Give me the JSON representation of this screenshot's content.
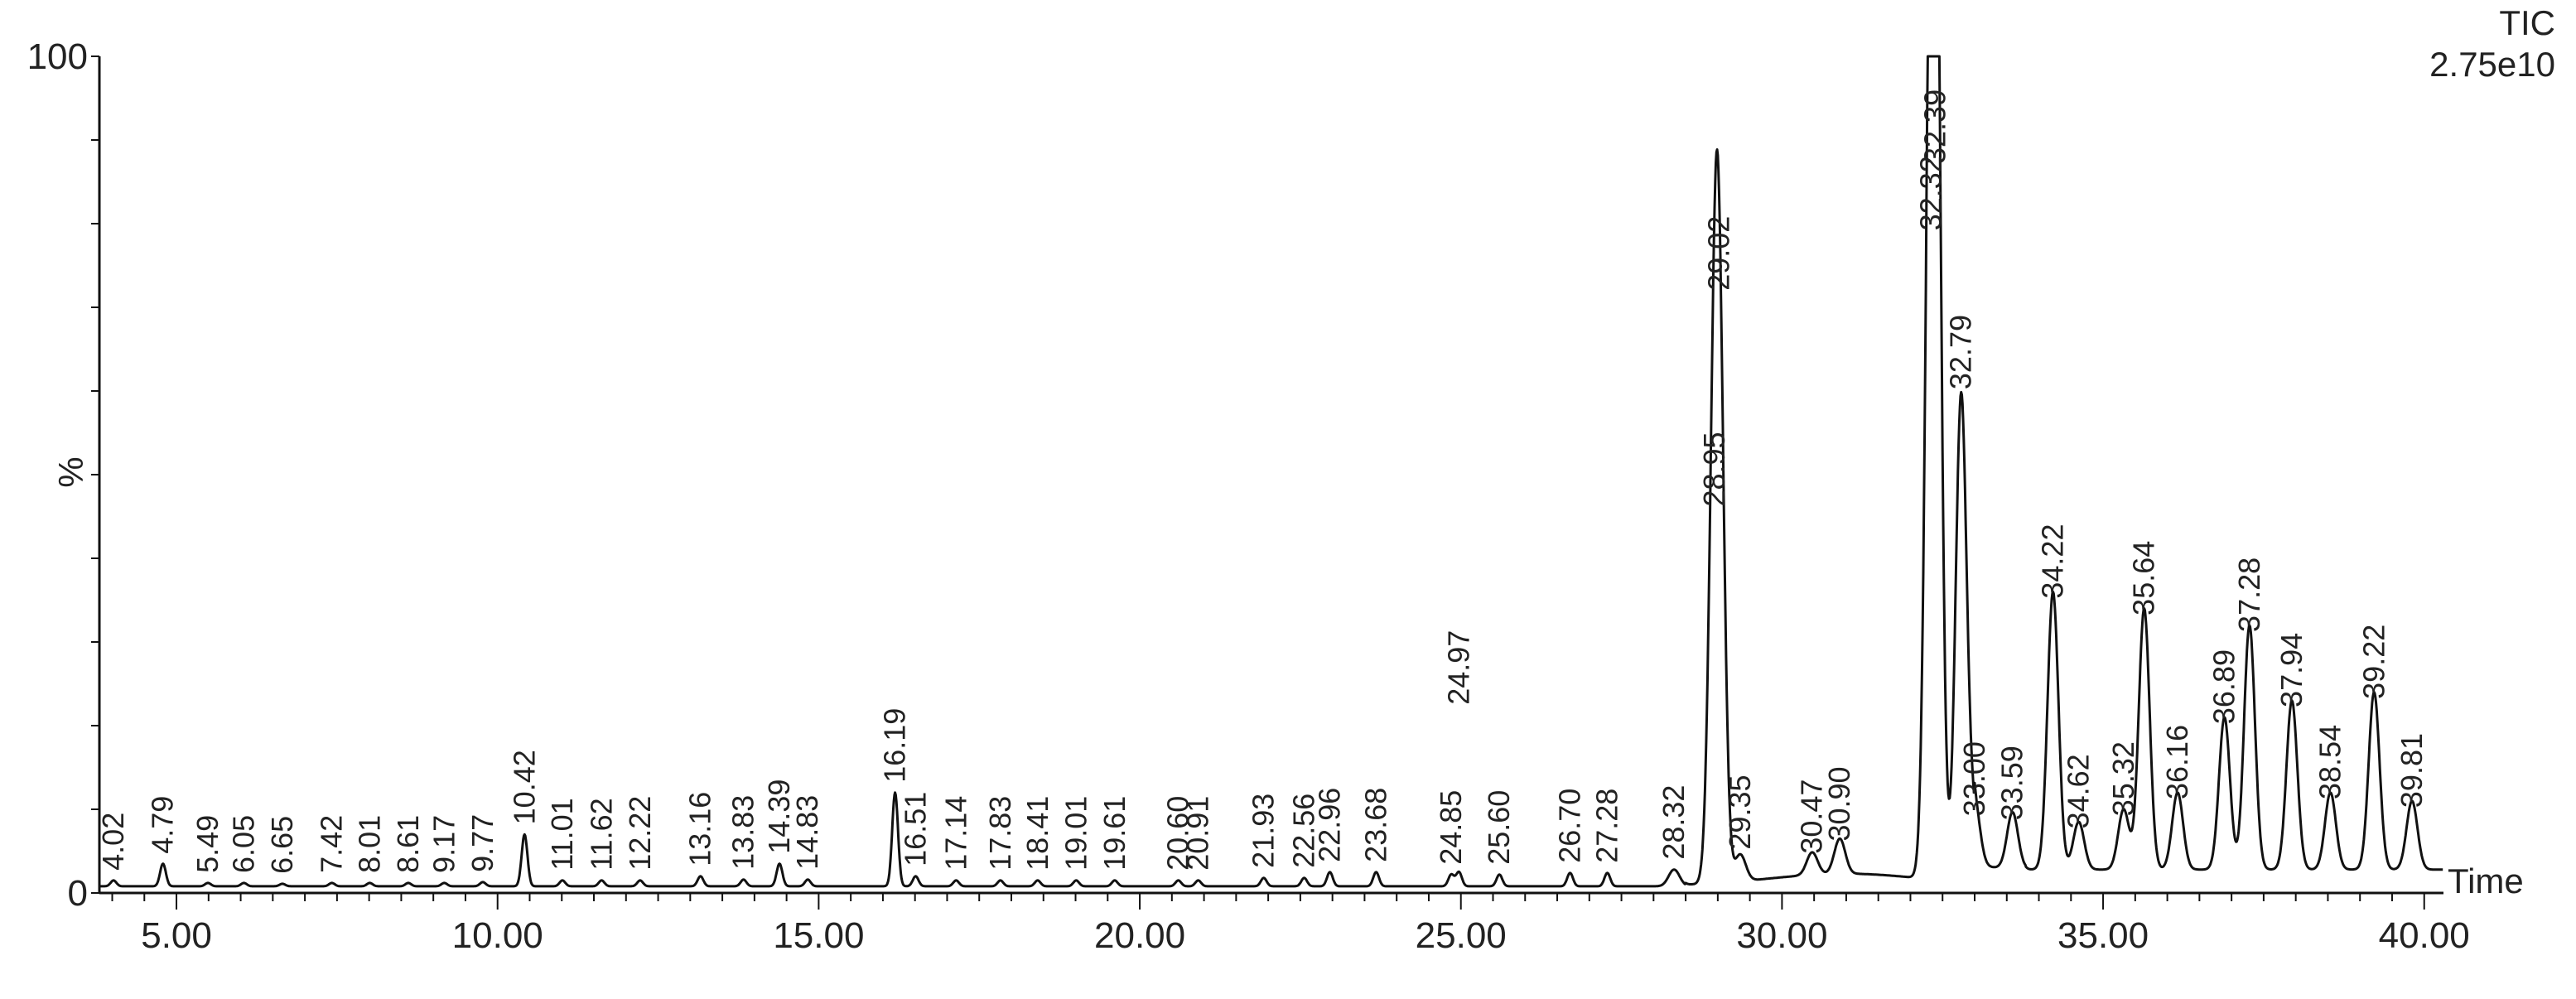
{
  "chart_data": {
    "type": "line",
    "title": "",
    "trace_name": "TIC",
    "scale_label": "2.75e10",
    "xlabel": "Time",
    "ylabel": "%",
    "xlim": [
      3.8,
      40.3
    ],
    "ylim": [
      0,
      100
    ],
    "x_ticks": [
      "5.00",
      "10.00",
      "15.00",
      "20.00",
      "25.00",
      "30.00",
      "35.00",
      "40.00"
    ],
    "y_ticks": [
      "0",
      "100"
    ],
    "grid": false,
    "baseline": 0.8,
    "peaks": [
      {
        "rt": 4.02,
        "label": "4.02",
        "height": 1.5
      },
      {
        "rt": 4.79,
        "label": "4.79",
        "height": 3.5
      },
      {
        "rt": 5.49,
        "label": "5.49",
        "height": 1.2
      },
      {
        "rt": 6.05,
        "label": "6.05",
        "height": 1.2
      },
      {
        "rt": 6.65,
        "label": "6.65",
        "height": 1.1
      },
      {
        "rt": 7.42,
        "label": "7.42",
        "height": 1.2
      },
      {
        "rt": 8.01,
        "label": "8.01",
        "height": 1.2
      },
      {
        "rt": 8.61,
        "label": "8.61",
        "height": 1.2
      },
      {
        "rt": 9.17,
        "label": "9.17",
        "height": 1.2
      },
      {
        "rt": 9.77,
        "label": "9.77",
        "height": 1.3
      },
      {
        "rt": 10.42,
        "label": "10.42",
        "height": 7.0
      },
      {
        "rt": 11.01,
        "label": "11.01",
        "height": 1.5
      },
      {
        "rt": 11.62,
        "label": "11.62",
        "height": 1.5
      },
      {
        "rt": 12.22,
        "label": "12.22",
        "height": 1.5
      },
      {
        "rt": 13.16,
        "label": "13.16",
        "height": 2.0
      },
      {
        "rt": 13.83,
        "label": "13.83",
        "height": 1.6
      },
      {
        "rt": 14.39,
        "label": "14.39",
        "height": 3.5
      },
      {
        "rt": 14.83,
        "label": "14.83",
        "height": 1.6
      },
      {
        "rt": 16.19,
        "label": "16.19",
        "height": 12.0
      },
      {
        "rt": 16.51,
        "label": "16.51",
        "height": 2.0
      },
      {
        "rt": 17.14,
        "label": "17.14",
        "height": 1.5
      },
      {
        "rt": 17.83,
        "label": "17.83",
        "height": 1.5
      },
      {
        "rt": 18.41,
        "label": "18.41",
        "height": 1.5
      },
      {
        "rt": 19.01,
        "label": "19.01",
        "height": 1.5
      },
      {
        "rt": 19.61,
        "label": "19.61",
        "height": 1.5
      },
      {
        "rt": 20.6,
        "label": "20.60",
        "height": 1.5
      },
      {
        "rt": 20.91,
        "label": "20.91",
        "height": 1.5
      },
      {
        "rt": 21.93,
        "label": "21.93",
        "height": 1.8
      },
      {
        "rt": 22.56,
        "label": "22.56",
        "height": 1.8
      },
      {
        "rt": 22.96,
        "label": "22.96",
        "height": 2.5
      },
      {
        "rt": 23.68,
        "label": "23.68",
        "height": 2.5
      },
      {
        "rt": 24.85,
        "label": "24.85",
        "height": 2.2
      },
      {
        "rt": 24.97,
        "label": "24.97",
        "height": 2.5
      },
      {
        "rt": 25.6,
        "label": "25.60",
        "height": 2.2
      },
      {
        "rt": 26.7,
        "label": "26.70",
        "height": 2.4
      },
      {
        "rt": 27.28,
        "label": "27.28",
        "height": 2.4
      },
      {
        "rt": 28.32,
        "label": "28.32",
        "height": 2.8
      },
      {
        "rt": 28.95,
        "label": "28.95",
        "height": 45.0
      },
      {
        "rt": 29.02,
        "label": "29.02",
        "height": 52.0
      },
      {
        "rt": 29.35,
        "label": "29.35",
        "height": 4.0
      },
      {
        "rt": 30.47,
        "label": "30.47",
        "height": 3.5
      },
      {
        "rt": 30.9,
        "label": "30.90",
        "height": 5.0
      },
      {
        "rt": 32.32,
        "label": "32.32",
        "height": 78.0
      },
      {
        "rt": 32.39,
        "label": "32.39",
        "height": 100.0
      },
      {
        "rt": 32.79,
        "label": "32.79",
        "height": 59.0
      },
      {
        "rt": 33.0,
        "label": "33.00",
        "height": 8.0
      },
      {
        "rt": 33.59,
        "label": "33.59",
        "height": 7.5
      },
      {
        "rt": 34.22,
        "label": "34.22",
        "height": 34.0
      },
      {
        "rt": 34.62,
        "label": "34.62",
        "height": 6.5
      },
      {
        "rt": 35.32,
        "label": "35.32",
        "height": 8.0
      },
      {
        "rt": 35.64,
        "label": "35.64",
        "height": 32.0
      },
      {
        "rt": 36.16,
        "label": "36.16",
        "height": 10.0
      },
      {
        "rt": 36.89,
        "label": "36.89",
        "height": 19.0
      },
      {
        "rt": 37.28,
        "label": "37.28",
        "height": 30.0
      },
      {
        "rt": 37.94,
        "label": "37.94",
        "height": 21.0
      },
      {
        "rt": 38.54,
        "label": "38.54",
        "height": 10.0
      },
      {
        "rt": 39.22,
        "label": "39.22",
        "height": 22.0
      },
      {
        "rt": 39.81,
        "label": "39.81",
        "height": 9.0
      }
    ]
  }
}
